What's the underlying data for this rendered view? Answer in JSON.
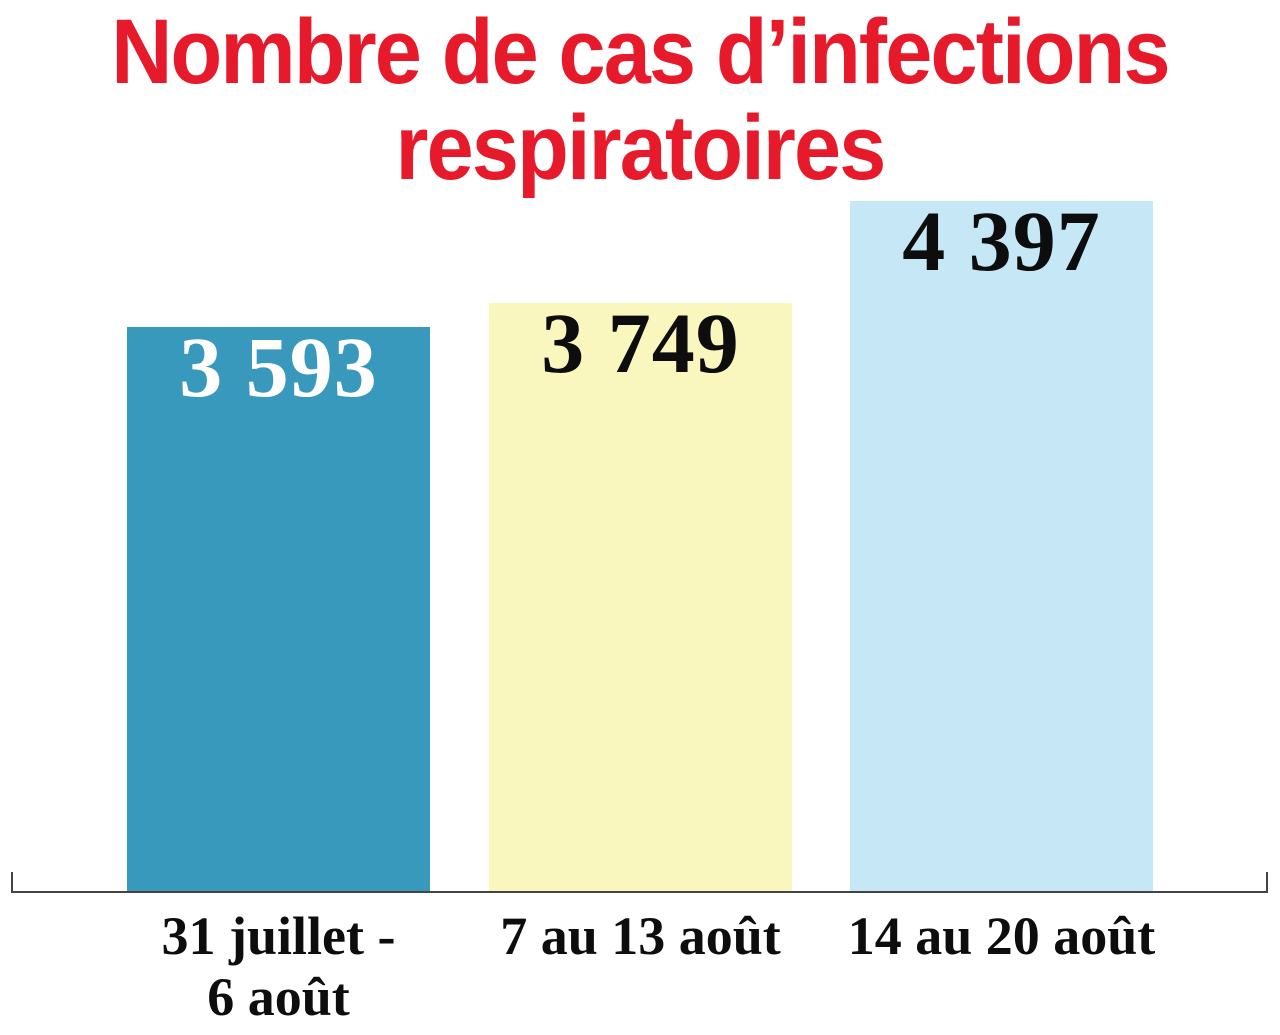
{
  "chart_data": {
    "type": "bar",
    "title": "Nombre de cas d’infections respiratoires",
    "title_lines": [
      "Nombre de cas d’infections",
      "respiratoires"
    ],
    "title_color": "#E61A2B",
    "categories": [
      "31 juillet - 6 août",
      "7 au 13 août",
      "14 au 20 août"
    ],
    "values": [
      3593,
      3749,
      4397
    ],
    "bars": [
      {
        "value": 3593,
        "label": "3 593",
        "color": "#3999BC",
        "label_color": "#FFFFFF",
        "category_lines": [
          "31 juillet -",
          "6 août"
        ]
      },
      {
        "value": 3749,
        "label": "3 749",
        "color": "#FAF7BE",
        "label_color": "#0D0D0D",
        "category_lines": [
          "7 au 13 août"
        ]
      },
      {
        "value": 4397,
        "label": "4 397",
        "color": "#C6E8F6",
        "label_color": "#0D0D0D",
        "category_lines": [
          "14 au 20 août"
        ]
      }
    ],
    "xlabel": "",
    "ylabel": "",
    "ylim": [
      0,
      4397
    ],
    "grid": false,
    "legend": false,
    "axis_line_color": "#444444",
    "background": "#FFFFFF"
  }
}
